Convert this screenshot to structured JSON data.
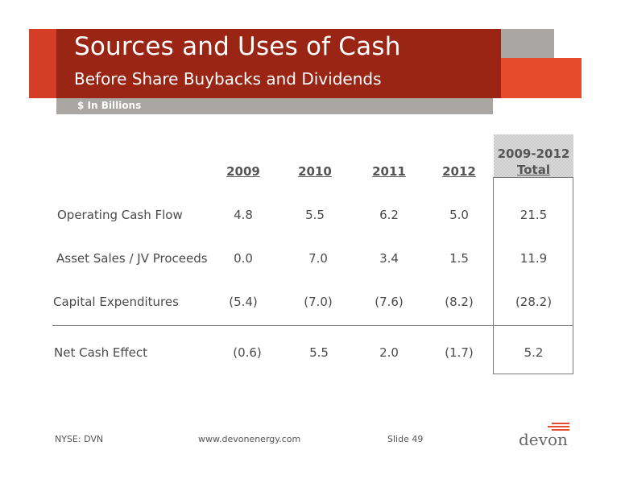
{
  "header": {
    "title": "Sources and Uses of Cash",
    "subtitle": "Before Share Buybacks and Dividends",
    "units": "$ In Billions"
  },
  "table": {
    "columns": [
      "2009",
      "2010",
      "2011",
      "2012"
    ],
    "total_header": [
      "2009-2012",
      "Total"
    ],
    "rows": [
      {
        "label": "Operating Cash Flow",
        "values": [
          "4.8",
          "5.5",
          "6.2",
          "5.0"
        ],
        "total": "21.5"
      },
      {
        "label": "Asset Sales / JV Proceeds",
        "values": [
          "0.0",
          "7.0",
          "3.4",
          "1.5"
        ],
        "total": "11.9"
      },
      {
        "label": "Capital Expenditures",
        "values": [
          "(5.4)",
          "(7.0)",
          "(7.6)",
          "(8.2)"
        ],
        "total": "(28.2)"
      },
      {
        "label": "Net Cash Effect",
        "values": [
          "(0.6)",
          "5.5",
          "2.0",
          "(1.7)"
        ],
        "total": "5.2"
      }
    ]
  },
  "footer": {
    "ticker": "NYSE: DVN",
    "website": "www.devonenergy.com",
    "slide": "Slide 49",
    "logo_text": "devon"
  },
  "colors": {
    "dark_red": "#9a2514",
    "orange": "#e64b2c",
    "gray": "#a9a6a3"
  }
}
